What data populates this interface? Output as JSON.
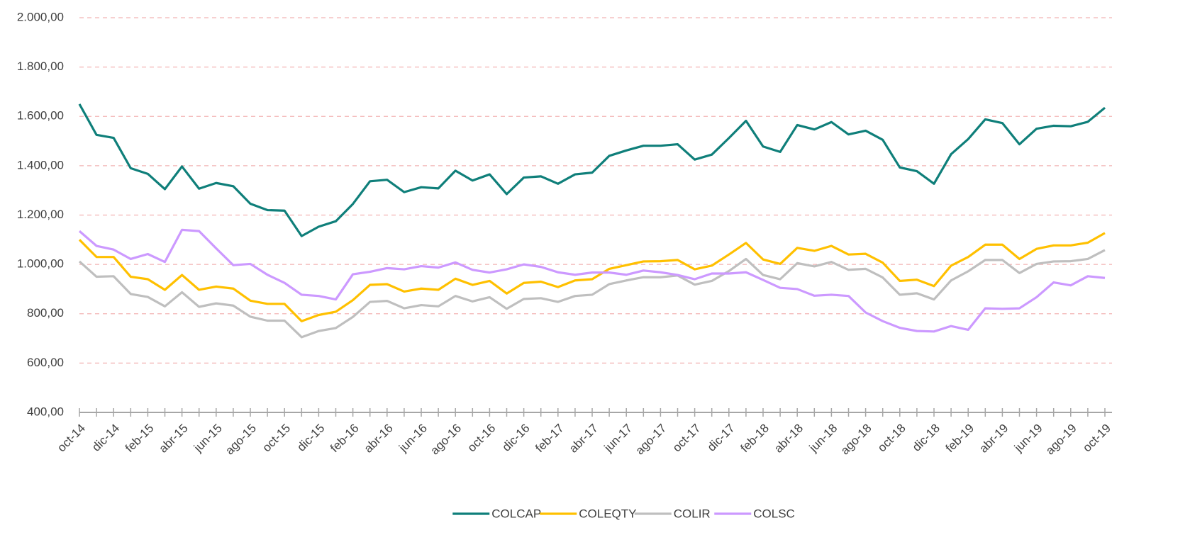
{
  "chart_data": {
    "type": "line",
    "categories": [
      "oct-14",
      null,
      "dic-14",
      null,
      "feb-15",
      null,
      "abr-15",
      null,
      "jun-15",
      null,
      "ago-15",
      null,
      "oct-15",
      null,
      "dic-15",
      null,
      "feb-16",
      null,
      "abr-16",
      null,
      "jun-16",
      null,
      "ago-16",
      null,
      "oct-16",
      null,
      "dic-16",
      null,
      "feb-17",
      null,
      "abr-17",
      null,
      "jun-17",
      null,
      "ago-17",
      null,
      "oct-17",
      null,
      "dic-17",
      null,
      "feb-18",
      null,
      "abr-18",
      null,
      "jun-18",
      null,
      "ago-18",
      null,
      "oct-18",
      null,
      "dic-18",
      null,
      "feb-19",
      null,
      "abr-19",
      null,
      "jun-19",
      null,
      "ago-19",
      null,
      "oct-19"
    ],
    "series": [
      {
        "name": "COLCAP",
        "color": "#0f7f7a",
        "values": [
          1650,
          1525,
          1513,
          1390,
          1367,
          1305,
          1397,
          1307,
          1330,
          1317,
          1246,
          1220,
          1218,
          1115,
          1153,
          1175,
          1245,
          1337,
          1343,
          1293,
          1313,
          1308,
          1380,
          1340,
          1365,
          1285,
          1352,
          1357,
          1327,
          1365,
          1372,
          1440,
          1462,
          1481,
          1481,
          1487,
          1425,
          1445,
          1512,
          1582,
          1478,
          1456,
          1565,
          1547,
          1577,
          1527,
          1542,
          1505,
          1393,
          1378,
          1327,
          1447,
          1508,
          1588,
          1573,
          1487,
          1550,
          1562,
          1560,
          1578,
          1635
        ]
      },
      {
        "name": "COLEQTY",
        "color": "#ffc000",
        "values": [
          1100,
          1030,
          1030,
          950,
          940,
          897,
          957,
          897,
          910,
          902,
          853,
          840,
          840,
          770,
          795,
          808,
          855,
          917,
          920,
          890,
          902,
          897,
          942,
          917,
          933,
          882,
          925,
          930,
          908,
          935,
          940,
          982,
          997,
          1012,
          1013,
          1018,
          980,
          995,
          1040,
          1087,
          1020,
          1002,
          1067,
          1055,
          1075,
          1040,
          1043,
          1007,
          933,
          938,
          912,
          995,
          1030,
          1080,
          1080,
          1022,
          1063,
          1077,
          1077,
          1088,
          1127
        ]
      },
      {
        "name": "COLIR",
        "color": "#bfbfbf",
        "values": [
          1012,
          950,
          952,
          880,
          868,
          830,
          887,
          828,
          842,
          833,
          788,
          772,
          772,
          705,
          730,
          742,
          787,
          848,
          852,
          822,
          835,
          830,
          872,
          850,
          867,
          820,
          860,
          863,
          848,
          872,
          877,
          920,
          935,
          948,
          948,
          955,
          918,
          933,
          973,
          1022,
          957,
          940,
          1005,
          992,
          1010,
          978,
          982,
          947,
          877,
          883,
          858,
          935,
          972,
          1018,
          1018,
          965,
          1002,
          1012,
          1013,
          1022,
          1058
        ]
      },
      {
        "name": "COLSC",
        "color": "#cc99ff",
        "values": [
          1135,
          1075,
          1060,
          1022,
          1042,
          1010,
          1140,
          1135,
          1065,
          997,
          1002,
          958,
          925,
          877,
          872,
          858,
          960,
          970,
          985,
          980,
          993,
          987,
          1008,
          978,
          967,
          980,
          1000,
          990,
          968,
          958,
          967,
          967,
          958,
          975,
          968,
          957,
          940,
          963,
          963,
          968,
          937,
          905,
          900,
          873,
          877,
          872,
          805,
          770,
          743,
          730,
          728,
          750,
          735,
          822,
          820,
          822,
          867,
          927,
          915,
          952,
          945
        ]
      }
    ],
    "ylim": [
      400,
      2000
    ],
    "yticks": [
      {
        "value": 400,
        "label": "400,00"
      },
      {
        "value": 600,
        "label": "600,00"
      },
      {
        "value": 800,
        "label": "800,00"
      },
      {
        "value": 1000,
        "label": "1.000,00"
      },
      {
        "value": 1200,
        "label": "1.200,00"
      },
      {
        "value": 1400,
        "label": "1.400,00"
      },
      {
        "value": 1600,
        "label": "1.600,00"
      },
      {
        "value": 1800,
        "label": "1.800,00"
      },
      {
        "value": 2000,
        "label": "2.000,00"
      }
    ],
    "grid": true,
    "legend": "bottom"
  }
}
